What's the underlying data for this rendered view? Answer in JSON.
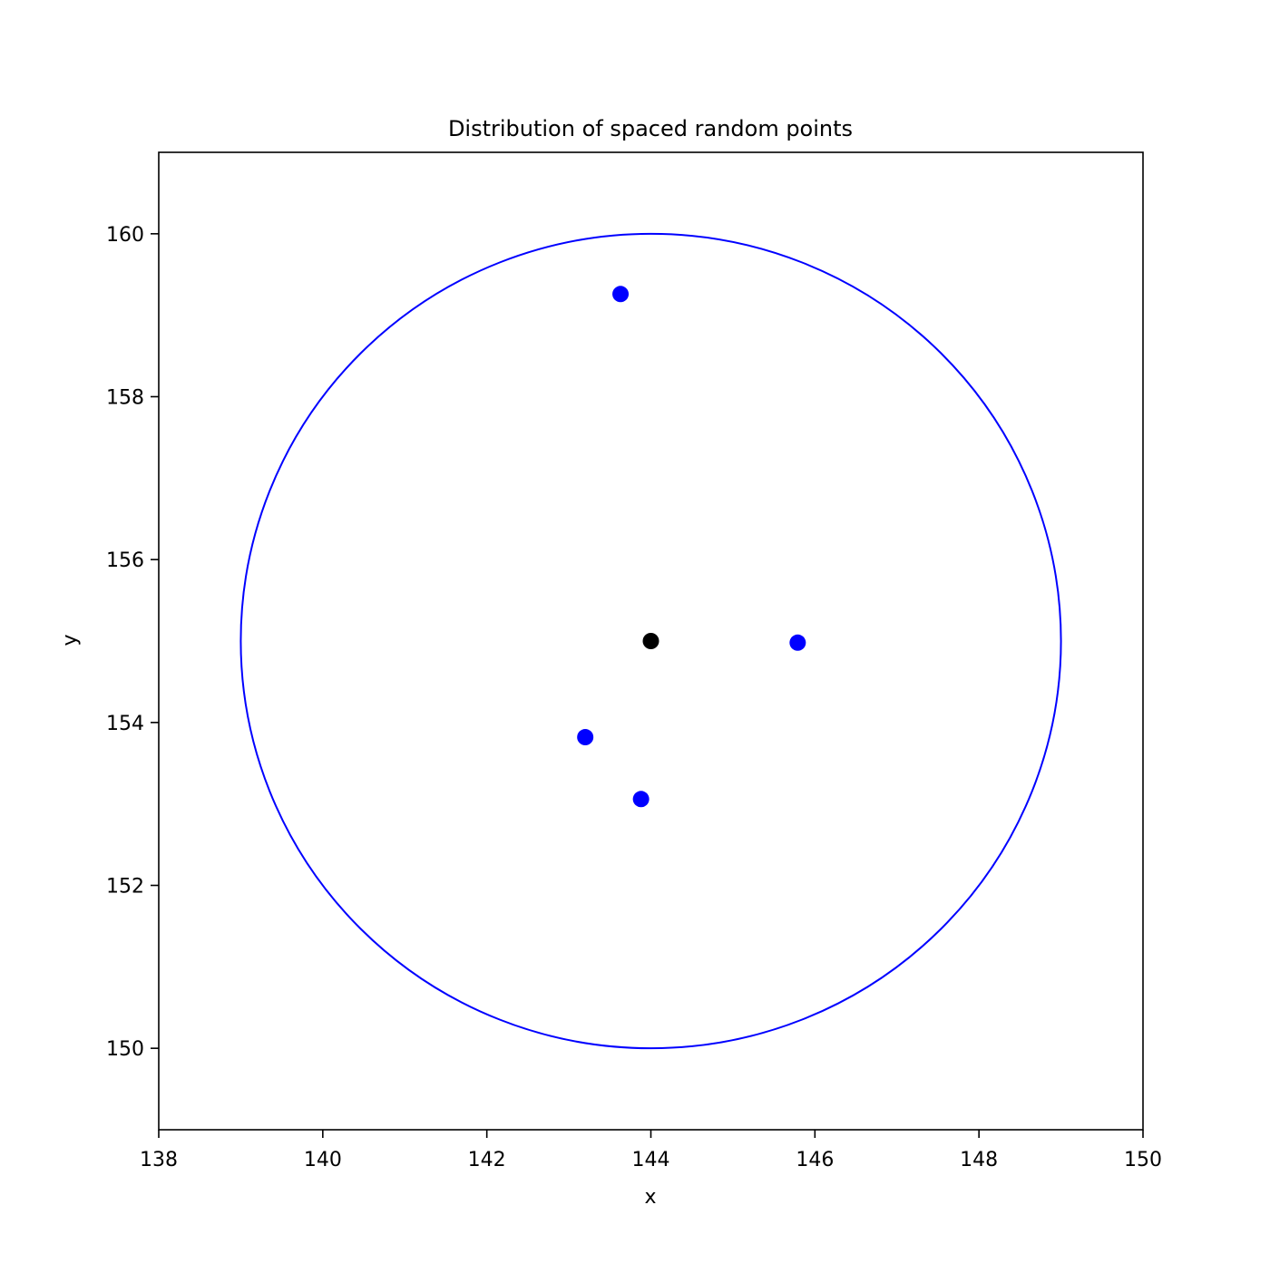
{
  "chart_data": {
    "type": "scatter",
    "title": "Distribution of spaced random points",
    "xlabel": "x",
    "ylabel": "y",
    "xlim": [
      138,
      150
    ],
    "ylim": [
      149,
      161
    ],
    "xticks": [
      138,
      140,
      142,
      144,
      146,
      148,
      150
    ],
    "yticks": [
      150,
      152,
      154,
      156,
      158,
      160
    ],
    "grid": false,
    "legend": "none",
    "circle": {
      "center": [
        144,
        155
      ],
      "radius": 5,
      "color": "#0000ff"
    },
    "center_point": {
      "x": 144.0,
      "y": 155.0,
      "color": "#000000"
    },
    "series": [
      {
        "color": "#0000ff",
        "points": [
          {
            "x": 143.63,
            "y": 159.26
          },
          {
            "x": 145.79,
            "y": 154.98
          },
          {
            "x": 143.2,
            "y": 153.82
          },
          {
            "x": 143.88,
            "y": 153.06
          }
        ]
      }
    ]
  }
}
